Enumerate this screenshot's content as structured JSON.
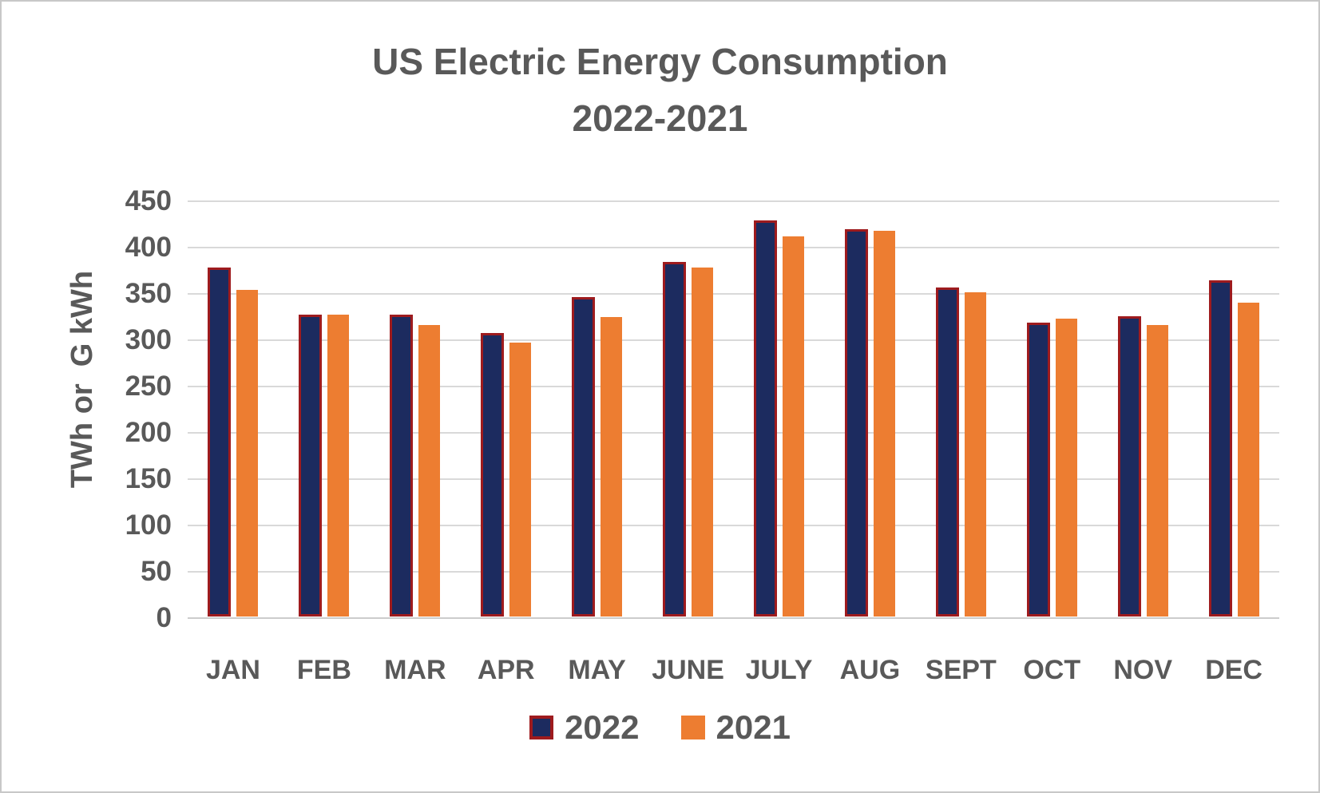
{
  "chart_data": {
    "type": "bar",
    "title": "US Electric Energy Consumption",
    "subtitle": "2022-2021",
    "xlabel": "",
    "ylabel": "TWh or  G kWh",
    "categories": [
      "JAN",
      "FEB",
      "MAR",
      "APR",
      "MAY",
      "JUNE",
      "JULY",
      "AUG",
      "SEPT",
      "OCT",
      "NOV",
      "DEC"
    ],
    "series": [
      {
        "name": "2022",
        "values": [
          377,
          326,
          326,
          306,
          345,
          383,
          428,
          418,
          355,
          317,
          324,
          363
        ],
        "fill": "#1c2b5f",
        "border": "#9e1b1e"
      },
      {
        "name": "2021",
        "values": [
          353,
          326,
          315,
          296,
          323,
          377,
          410,
          416,
          350,
          322,
          315,
          339
        ],
        "fill": "#ed7d31",
        "border": null
      }
    ],
    "ylim": [
      0,
      450
    ],
    "ytick_step": 50,
    "grid": true,
    "legend_position": "bottom"
  },
  "colors": {
    "title_text": "#595959",
    "axis_text": "#595959",
    "gridline": "#d9d9d9",
    "background": "#ffffff",
    "frame_border": "#c8c8c8",
    "series_2022_fill": "#1c2b5f",
    "series_2022_border": "#9e1b1e",
    "series_2021_fill": "#ed7d31"
  }
}
